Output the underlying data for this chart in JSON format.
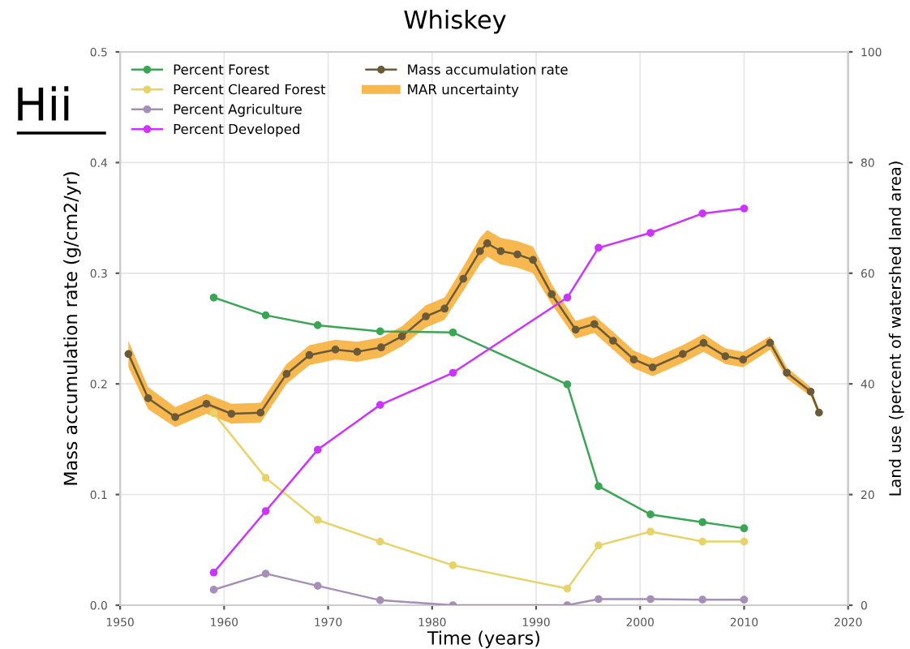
{
  "chart_data": {
    "type": "line",
    "title": "Whiskey",
    "xlabel": "Time (years)",
    "ylabel": "Mass accumulation rate (g/cm2/yr)",
    "y2label": "Land use (percent of watershed land area)",
    "annotations": [
      "Hii",
      "MAR uncertainty"
    ],
    "xlim": [
      1950,
      2020
    ],
    "xticks": [
      1950,
      1960,
      1970,
      1980,
      1990,
      2000,
      2010,
      2020
    ],
    "ylim": [
      0,
      0.5
    ],
    "yticks": [
      {
        "value": 0,
        "label": "0.0"
      },
      0.1,
      0.2,
      0.3,
      0.4,
      0.5
    ],
    "y2lim": [
      0,
      100
    ],
    "y2ticks": [
      0,
      20,
      40,
      60,
      80,
      100
    ],
    "grid": true,
    "legend": "top left",
    "marker": "circle",
    "series": [
      {
        "name": "Percent Forest",
        "axis": "y2",
        "color": "#3aa655",
        "x": [
          1959,
          1964,
          1969,
          1975,
          1982,
          1993,
          1996,
          2001,
          2006,
          2010
        ],
        "values": [
          55.6,
          52.4,
          50.6,
          49.5,
          49.3,
          39.9,
          21.5,
          16.4,
          15.0,
          13.9
        ]
      },
      {
        "name": "Percent Cleared Forest",
        "axis": "y2",
        "color": "#e8d36a",
        "x": [
          1959,
          1964,
          1969,
          1975,
          1982,
          1993,
          1996,
          2001,
          2006,
          2010
        ],
        "values": [
          34.7,
          23.0,
          15.4,
          11.5,
          7.2,
          3.0,
          10.8,
          13.3,
          11.5,
          11.5
        ]
      },
      {
        "name": "Percent Agriculture",
        "axis": "y2",
        "color": "#a58fb8",
        "x": [
          1959,
          1964,
          1969,
          1975,
          1982,
          1993,
          1996,
          2001,
          2006,
          2010
        ],
        "values": [
          2.8,
          5.7,
          3.5,
          0.9,
          0,
          0,
          1.1,
          1.1,
          1.0,
          1.0
        ]
      },
      {
        "name": "Percent Developed",
        "axis": "y2",
        "color": "#cc33ff",
        "x": [
          1959,
          1964,
          1969,
          1975,
          1982,
          1993,
          1996,
          2001,
          2006,
          2010
        ],
        "values": [
          5.9,
          17.0,
          28.1,
          36.2,
          42.0,
          55.6,
          64.6,
          67.3,
          70.8,
          71.7
        ]
      },
      {
        "name": "Mass accumulation rate",
        "color": "#6b5a3a",
        "x": [
          1950.8,
          1952.7,
          1955.3,
          1958.3,
          1960.7,
          1963.5,
          1966.0,
          1968.2,
          1970.7,
          1972.8,
          1975.1,
          1977.1,
          1979.4,
          1981.2,
          1983.0,
          1984.6,
          1985.3,
          1986.6,
          1988.2,
          1989.7,
          1991.5,
          1993.8,
          1995.6,
          1997.4,
          1999.4,
          2001.2,
          2004.1,
          2006.1,
          2008.2,
          2009.9,
          2012.5,
          2014.1,
          2016.4,
          2017.2
        ],
        "values": [
          0.227,
          0.187,
          0.17,
          0.182,
          0.173,
          0.174,
          0.209,
          0.226,
          0.231,
          0.229,
          0.233,
          0.243,
          0.261,
          0.268,
          0.295,
          0.32,
          0.327,
          0.32,
          0.317,
          0.312,
          0.281,
          0.249,
          0.254,
          0.239,
          0.222,
          0.215,
          0.227,
          0.237,
          0.225,
          0.222,
          0.237,
          0.21,
          0.193,
          0.174
        ],
        "lower": [
          0.215,
          0.177,
          0.161,
          0.173,
          0.164,
          0.165,
          0.2,
          0.217,
          0.222,
          0.22,
          0.224,
          0.234,
          0.251,
          0.258,
          0.284,
          0.308,
          0.315,
          0.308,
          0.305,
          0.3,
          0.272,
          0.241,
          0.246,
          0.231,
          0.214,
          0.207,
          0.219,
          0.229,
          0.218,
          0.215,
          0.231,
          0.205,
          0.189,
          0.171
        ],
        "upper": [
          0.239,
          0.197,
          0.179,
          0.191,
          0.182,
          0.183,
          0.218,
          0.235,
          0.24,
          0.238,
          0.242,
          0.252,
          0.271,
          0.278,
          0.306,
          0.332,
          0.339,
          0.332,
          0.329,
          0.324,
          0.29,
          0.257,
          0.262,
          0.247,
          0.23,
          0.223,
          0.235,
          0.245,
          0.232,
          0.229,
          0.243,
          0.215,
          0.197,
          0.177
        ]
      }
    ]
  }
}
